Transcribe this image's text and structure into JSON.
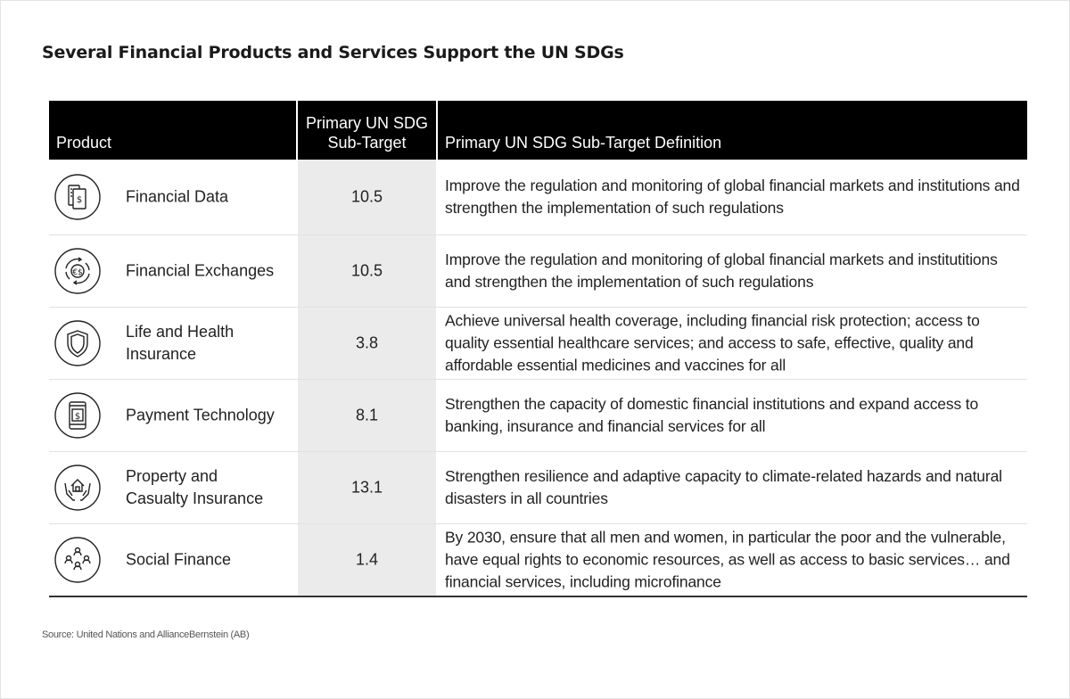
{
  "title": "Several Financial Products and Services Support the UN SDGs",
  "table": {
    "headers": {
      "product": "Product",
      "target_line1": "Primary UN SDG",
      "target_line2": "Sub-Target",
      "definition": "Primary UN SDG Sub-Target Definition"
    },
    "rows": [
      {
        "icon": "financial-data-icon",
        "product": "Financial Data",
        "target": "10.5",
        "definition": "Improve the regulation and monitoring of global financial markets and institutions and strengthen the implementation of such regulations"
      },
      {
        "icon": "financial-exchanges-icon",
        "product": "Financial Exchanges",
        "target": "10.5",
        "definition": "Improve the regulation and monitoring of global financial markets and institutitions and strengthen the implementation of such regulations"
      },
      {
        "icon": "shield-icon",
        "product": "Life and Health\nInsurance",
        "target": "3.8",
        "definition": "Achieve universal health coverage, including financial risk protection; access to quality essential healthcare services; and access to safe, effective, quality and affordable essential medicines and vaccines for all"
      },
      {
        "icon": "mobile-payment-icon",
        "product": "Payment Technology",
        "target": "8.1",
        "definition": "Strengthen the capacity of domestic financial institutions and expand access to banking, insurance and financial services for all"
      },
      {
        "icon": "house-in-hands-icon",
        "product": "Property and\nCasualty Insurance",
        "target": "13.1",
        "definition": "Strengthen resilience and adaptive capacity to climate-related hazards and natural disasters in all countries"
      },
      {
        "icon": "community-icon",
        "product": "Social Finance",
        "target": "1.4",
        "definition": "By 2030, ensure that all men and women, in particular the poor and the vulnerable, have equal rights to economic resources, as well as access to basic services… and financial services, including microfinance"
      }
    ]
  },
  "source": "Source: United Nations and AllianceBernstein (AB)"
}
